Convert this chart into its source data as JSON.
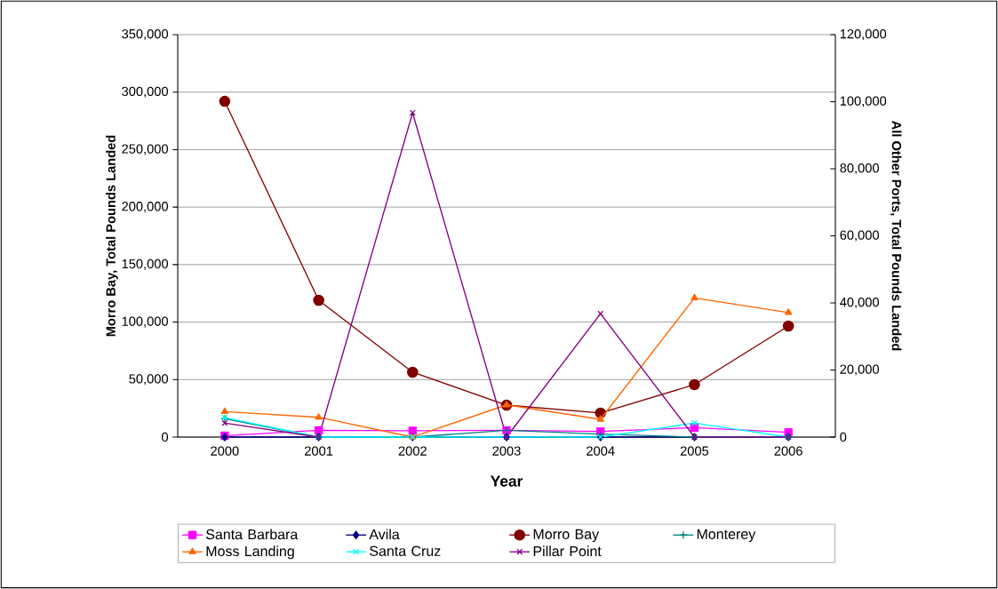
{
  "chart_data": {
    "type": "line",
    "xlabel": "Year",
    "ylabel": "Morro Bay, Total Pounds Landed",
    "y2label": "All Other Ports, Total Pounds Landed",
    "categories": [
      "2000",
      "2001",
      "2002",
      "2003",
      "2004",
      "2005",
      "2006"
    ],
    "ylim": [
      0,
      350000
    ],
    "yticks": [
      {
        "value": 0,
        "label": "0"
      },
      {
        "value": 50000,
        "label": "50,000"
      },
      {
        "value": 100000,
        "label": "100,000"
      },
      {
        "value": 150000,
        "label": "150,000"
      },
      {
        "value": 200000,
        "label": "200,000"
      },
      {
        "value": 250000,
        "label": "250,000"
      },
      {
        "value": 300000,
        "label": "300,000"
      },
      {
        "value": 350000,
        "label": "350,000"
      }
    ],
    "y2lim": [
      0,
      120000
    ],
    "y2ticks": [
      {
        "value": 0,
        "label": "0"
      },
      {
        "value": 20000,
        "label": "20,000"
      },
      {
        "value": 40000,
        "label": "40,000"
      },
      {
        "value": 60000,
        "label": "60,000"
      },
      {
        "value": 80000,
        "label": "80,000"
      },
      {
        "value": 100000,
        "label": "100,000"
      },
      {
        "value": 120000,
        "label": "120,000"
      }
    ],
    "grid": "y",
    "legend": "bottom",
    "line_style": "solid",
    "series": [
      {
        "name": "Santa Barbara",
        "color": "#ff00ff",
        "marker": "square",
        "axis": "y2",
        "values": [
          400,
          2000,
          1900,
          2000,
          1700,
          2800,
          1400
        ]
      },
      {
        "name": "Avila",
        "color": "#000080",
        "marker": "diamond",
        "axis": "y2",
        "values": [
          0,
          0,
          0,
          0,
          0,
          0,
          0
        ]
      },
      {
        "name": "Morro Bay",
        "color": "#800000",
        "marker": "circle",
        "values": [
          292000,
          119000,
          56400,
          27800,
          20900,
          45600,
          96600
        ]
      },
      {
        "name": "Monterey",
        "color": "#008080",
        "marker": "plus",
        "axis": "y2",
        "values": [
          5500,
          0,
          0,
          2000,
          900,
          0,
          0
        ]
      },
      {
        "name": "Moss Landing",
        "color": "#ff6600",
        "marker": "triangle",
        "axis": "y2",
        "values": [
          7600,
          5900,
          0,
          9600,
          5300,
          41500,
          37100
        ]
      },
      {
        "name": "Santa Cruz",
        "color": "#00ffff",
        "marker": "cross",
        "axis": "y2",
        "values": [
          5800,
          0,
          0,
          0,
          0,
          4200,
          0
        ]
      },
      {
        "name": "Pillar Point",
        "color": "#800080",
        "marker": "cross",
        "axis": "y2",
        "values": [
          4200,
          0,
          96700,
          0,
          36800,
          0,
          0
        ]
      }
    ]
  }
}
